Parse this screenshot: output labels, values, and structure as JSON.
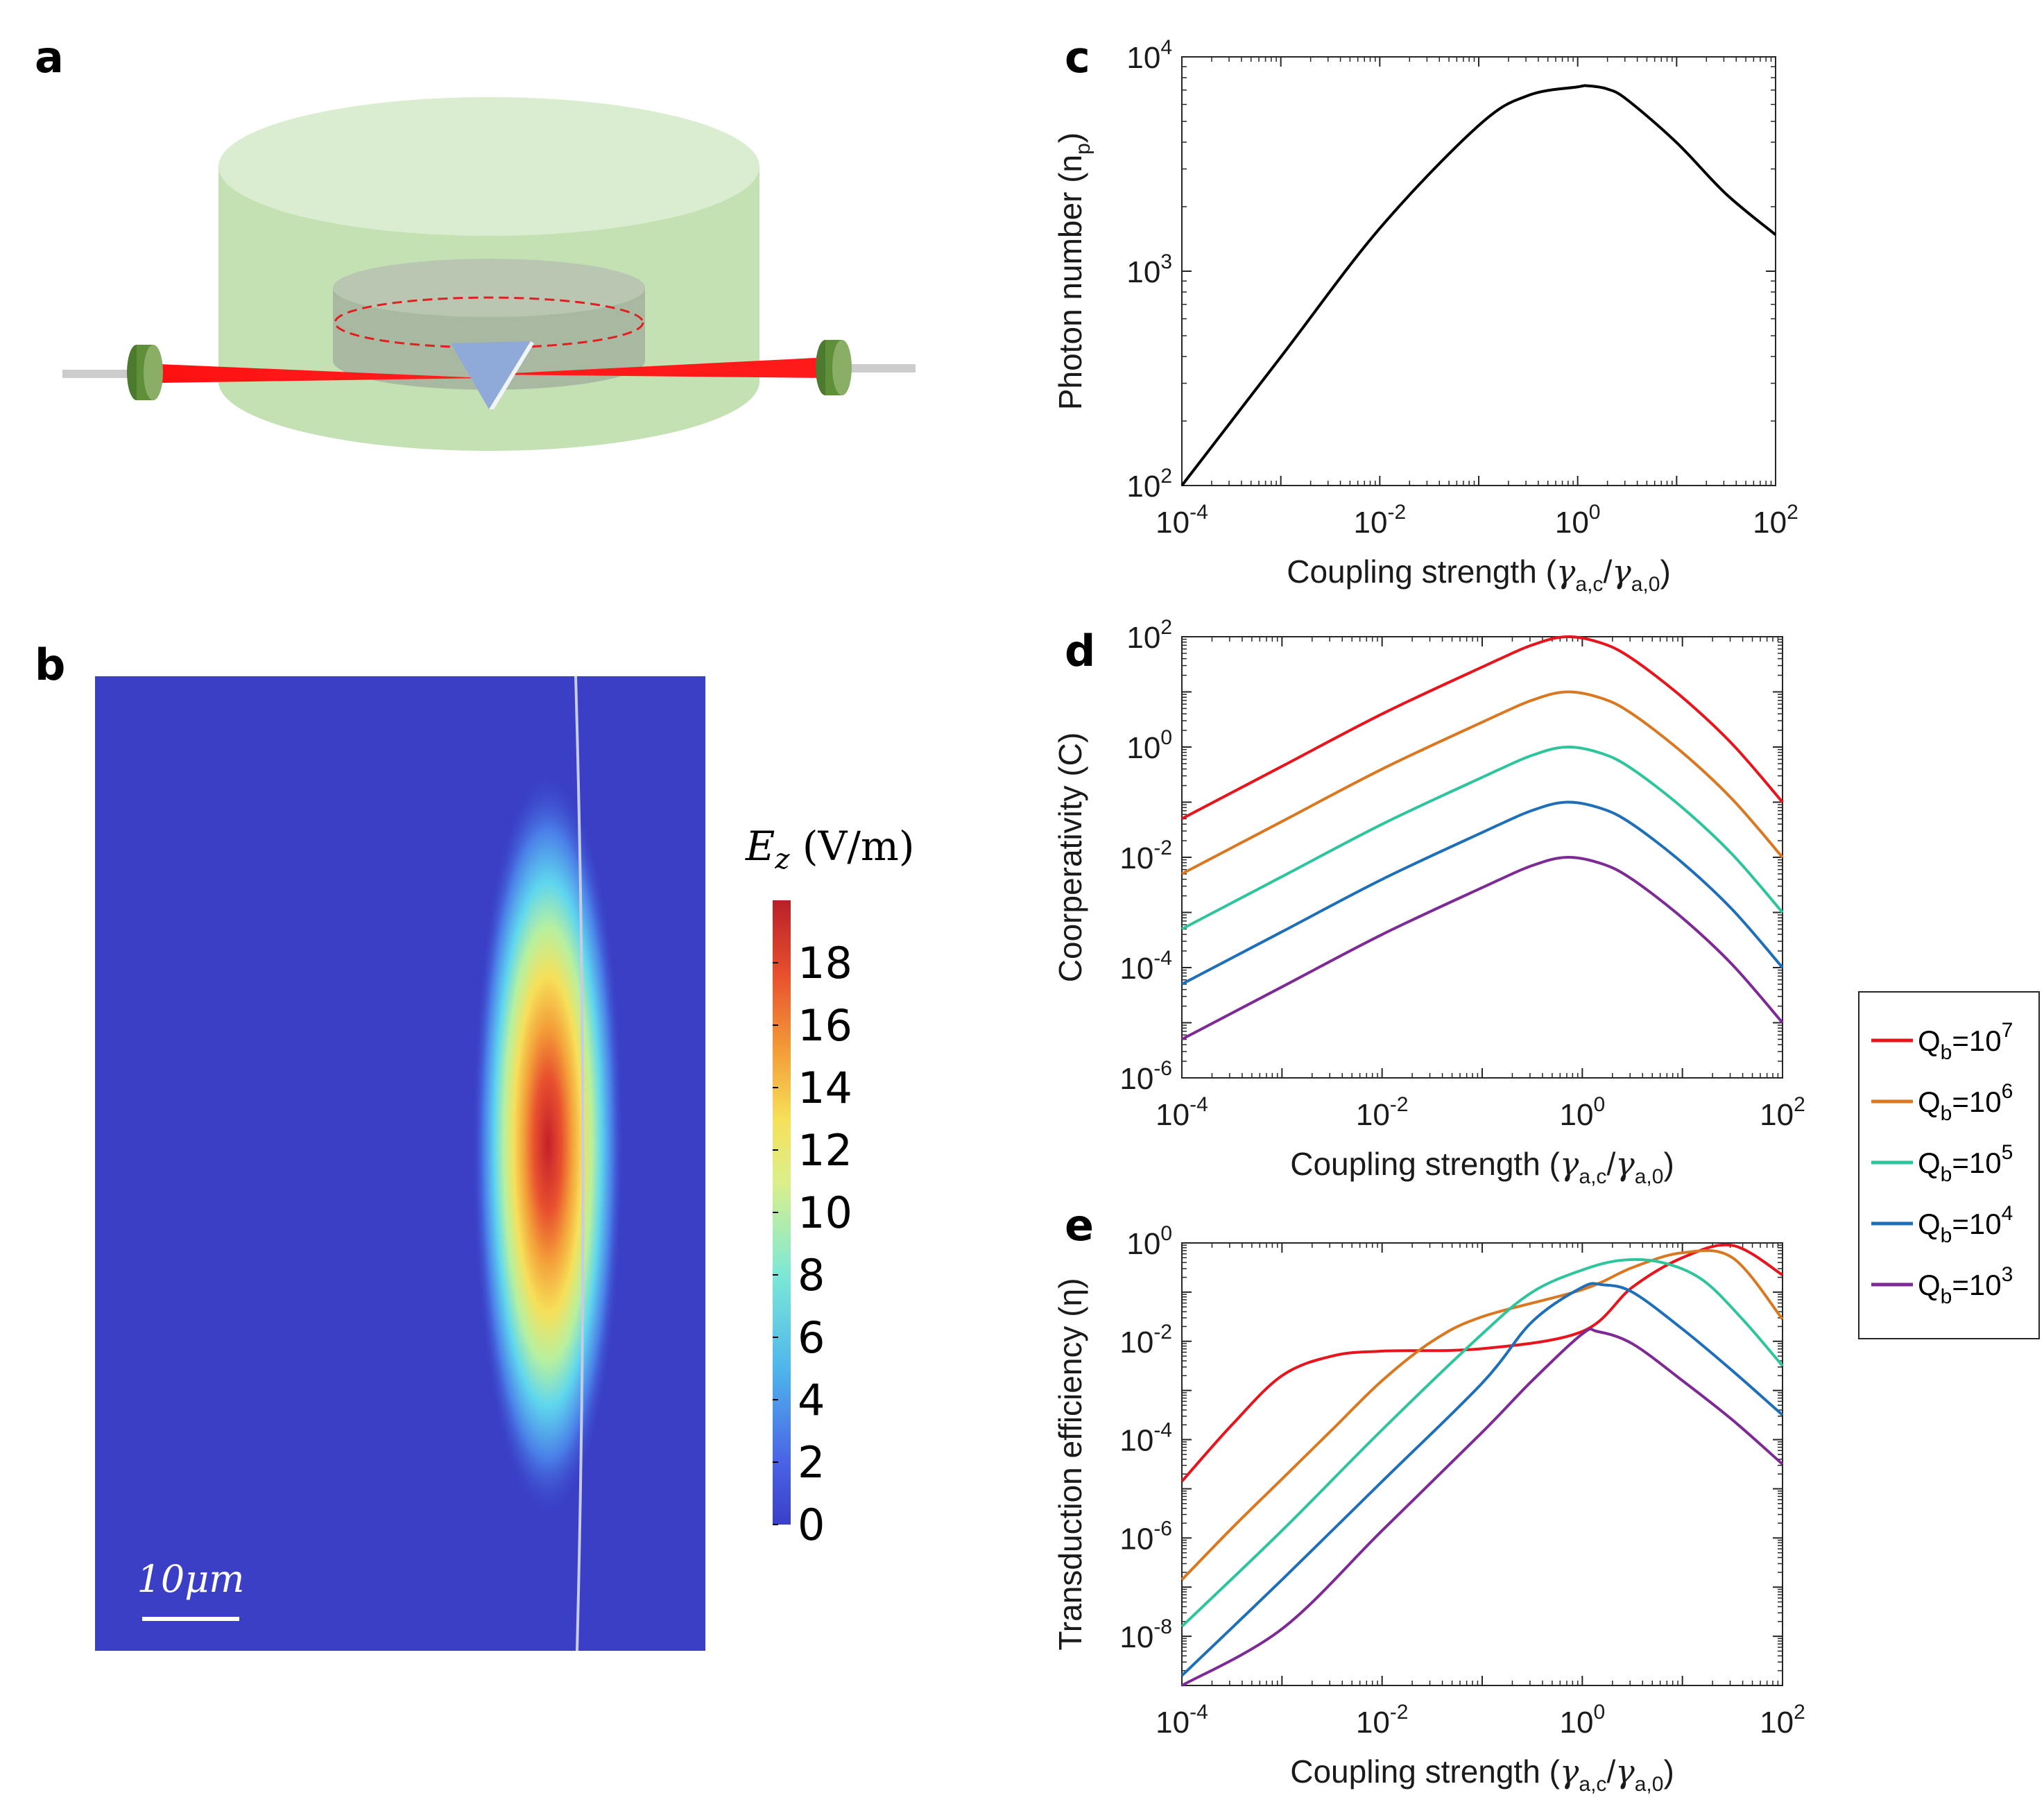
{
  "panels": {
    "a": {
      "letter": "a"
    },
    "b": {
      "letter": "b",
      "colorbar_title": "E",
      "colorbar_title_sub": "z",
      "colorbar_title_unit": " (V/m)",
      "colorbar_ticks": [
        "18",
        "16",
        "14",
        "12",
        "10",
        "8",
        "6",
        "4",
        "2",
        "0"
      ],
      "colorbar_range": [
        0,
        20
      ],
      "scale_bar_label": "10μm"
    },
    "c": {
      "letter": "c"
    },
    "d": {
      "letter": "d"
    },
    "e": {
      "letter": "e"
    }
  },
  "colors": {
    "red": "#e8141c",
    "orange": "#d97820",
    "teal": "#2ec49c",
    "blue": "#1f6fb8",
    "purple": "#7e2a94",
    "black": "#000000",
    "field_bg": "#3a3fc6"
  },
  "legend": {
    "entries": [
      {
        "prefix": "Q",
        "sub": "b",
        "mid": "=10",
        "sup": "7",
        "color": "#e8141c"
      },
      {
        "prefix": "Q",
        "sub": "b",
        "mid": "=10",
        "sup": "6",
        "color": "#d97820"
      },
      {
        "prefix": "Q",
        "sub": "b",
        "mid": "=10",
        "sup": "5",
        "color": "#2ec49c"
      },
      {
        "prefix": "Q",
        "sub": "b",
        "mid": "=10",
        "sup": "4",
        "color": "#1f6fb8"
      },
      {
        "prefix": "Q",
        "sub": "b",
        "mid": "=10",
        "sup": "3",
        "color": "#7e2a94"
      }
    ]
  },
  "chart_data": [
    {
      "id": "c",
      "type": "line",
      "xscale": "log",
      "yscale": "log",
      "xlim_exp": [
        -4,
        2
      ],
      "ylim_exp": [
        2,
        4
      ],
      "xtick_exps": [
        "-4",
        "-2",
        "0",
        "2"
      ],
      "ytick_exps": [
        "2",
        "3",
        "4"
      ],
      "xlabel": {
        "pre": "Coupling strength (",
        "g1": "γ",
        "s1": "a,c",
        "slash": "/",
        "g2": "γ",
        "s2": "a,0",
        "post": ")"
      },
      "ylabel": {
        "pre": "Photon number (n",
        "sub": "p",
        "post": ")"
      },
      "series": [
        {
          "name": "np",
          "color": "#000000",
          "x_exp": [
            -4,
            -3,
            -2,
            -1,
            -0.5,
            0,
            0.1,
            0.3,
            0.5,
            1,
            1.5,
            2
          ],
          "y_exp": [
            2,
            2.6,
            3.2,
            3.68,
            3.82,
            3.86,
            3.865,
            3.85,
            3.8,
            3.6,
            3.36,
            3.17
          ]
        }
      ]
    },
    {
      "id": "d",
      "type": "line",
      "xscale": "log",
      "yscale": "log",
      "xlim_exp": [
        -4,
        2
      ],
      "ylim_exp": [
        -6,
        2
      ],
      "xtick_exps": [
        "-4",
        "-2",
        "0",
        "2"
      ],
      "ytick_exps": [
        "-6",
        "-4",
        "-2",
        "0",
        "2"
      ],
      "xlabel": {
        "pre": "Coupling strength (",
        "g1": "γ",
        "s1": "a,c",
        "slash": "/",
        "g2": "γ",
        "s2": "a,0",
        "post": ")"
      },
      "ylabel": {
        "pre": "Coorperativity (C)",
        "sub": "",
        "post": ""
      },
      "series": [
        {
          "name": "Qb=10^7",
          "color": "#e8141c",
          "x_exp": [
            -4,
            -3,
            -2,
            -1,
            -0.5,
            -0.15,
            0.2,
            0.5,
            1,
            1.5,
            2
          ],
          "y_exp": [
            -1.3,
            -0.35,
            0.6,
            1.45,
            1.85,
            2.0,
            1.88,
            1.6,
            0.9,
            0.05,
            -1.0
          ]
        },
        {
          "name": "Qb=10^6",
          "color": "#d97820",
          "x_exp": [
            -4,
            -3,
            -2,
            -1,
            -0.5,
            -0.15,
            0.2,
            0.5,
            1,
            1.5,
            2
          ],
          "y_exp": [
            -2.3,
            -1.35,
            -0.4,
            0.45,
            0.85,
            1.0,
            0.88,
            0.6,
            -0.1,
            -0.95,
            -2.0
          ]
        },
        {
          "name": "Qb=10^5",
          "color": "#2ec49c",
          "x_exp": [
            -4,
            -3,
            -2,
            -1,
            -0.5,
            -0.15,
            0.2,
            0.5,
            1,
            1.5,
            2
          ],
          "y_exp": [
            -3.3,
            -2.35,
            -1.4,
            -0.55,
            -0.15,
            0.0,
            -0.12,
            -0.4,
            -1.1,
            -1.95,
            -3.0
          ]
        },
        {
          "name": "Qb=10^4",
          "color": "#1f6fb8",
          "x_exp": [
            -4,
            -3,
            -2,
            -1,
            -0.5,
            -0.15,
            0.2,
            0.5,
            1,
            1.5,
            2
          ],
          "y_exp": [
            -4.3,
            -3.35,
            -2.4,
            -1.55,
            -1.15,
            -1.0,
            -1.12,
            -1.4,
            -2.1,
            -2.95,
            -4.0
          ]
        },
        {
          "name": "Qb=10^3",
          "color": "#7e2a94",
          "x_exp": [
            -4,
            -3,
            -2,
            -1,
            -0.5,
            -0.15,
            0.2,
            0.5,
            1,
            1.5,
            2
          ],
          "y_exp": [
            -5.3,
            -4.35,
            -3.4,
            -2.55,
            -2.15,
            -2.0,
            -2.12,
            -2.4,
            -3.1,
            -3.95,
            -5.0
          ]
        }
      ]
    },
    {
      "id": "e",
      "type": "line",
      "xscale": "log",
      "yscale": "log",
      "xlim_exp": [
        -4,
        2
      ],
      "ylim_exp": [
        -9,
        0
      ],
      "xtick_exps": [
        "-4",
        "-2",
        "0",
        "2"
      ],
      "ytick_exps": [
        "-8",
        "-6",
        "-4",
        "-2",
        "0"
      ],
      "xlabel": {
        "pre": "Coupling strength (",
        "g1": "γ",
        "s1": "a,c",
        "slash": "/",
        "g2": "γ",
        "s2": "a,0",
        "post": ")"
      },
      "ylabel": {
        "pre": "Transduction efficiency (",
        "sub": "",
        "post": "η)"
      },
      "series": [
        {
          "name": "Qb=10^7",
          "color": "#e8141c",
          "x_exp": [
            -4,
            -3.5,
            -3,
            -2.5,
            -2,
            -1,
            0,
            0.5,
            1,
            1.5,
            2
          ],
          "y_exp": [
            -4.85,
            -3.7,
            -2.7,
            -2.3,
            -2.2,
            -2.15,
            -1.8,
            -0.9,
            -0.3,
            -0.05,
            -0.65
          ]
        },
        {
          "name": "Qb=10^6",
          "color": "#d97820",
          "x_exp": [
            -4,
            -3.5,
            -3,
            -2.5,
            -2,
            -1.5,
            -1,
            0,
            0.5,
            1,
            1.5,
            2
          ],
          "y_exp": [
            -6.85,
            -5.8,
            -4.8,
            -3.8,
            -2.8,
            -2.0,
            -1.5,
            -0.95,
            -0.5,
            -0.2,
            -0.3,
            -1.55
          ]
        },
        {
          "name": "Qb=10^5",
          "color": "#2ec49c",
          "x_exp": [
            -4,
            -3,
            -2,
            -1,
            -0.5,
            0,
            0.4,
            0.8,
            1.2,
            1.6,
            2
          ],
          "y_exp": [
            -7.8,
            -5.85,
            -3.8,
            -1.85,
            -1.0,
            -0.55,
            -0.35,
            -0.4,
            -0.75,
            -1.55,
            -2.5
          ]
        },
        {
          "name": "Qb=10^4",
          "color": "#1f6fb8",
          "x_exp": [
            -4,
            -3,
            -2,
            -1,
            -0.5,
            0,
            0.2,
            0.5,
            1,
            1.5,
            2
          ],
          "y_exp": [
            -8.8,
            -6.85,
            -4.85,
            -2.85,
            -1.6,
            -0.9,
            -0.85,
            -1.0,
            -1.75,
            -2.6,
            -3.5
          ]
        },
        {
          "name": "Qb=10^3",
          "color": "#7e2a94",
          "x_exp": [
            -4,
            -3,
            -2,
            -1,
            -0.5,
            0,
            0.15,
            0.5,
            1,
            1.5,
            2
          ],
          "y_exp": [
            -9.0,
            -7.85,
            -5.85,
            -3.85,
            -2.8,
            -1.85,
            -1.8,
            -2.05,
            -2.8,
            -3.6,
            -4.5
          ]
        }
      ]
    }
  ]
}
